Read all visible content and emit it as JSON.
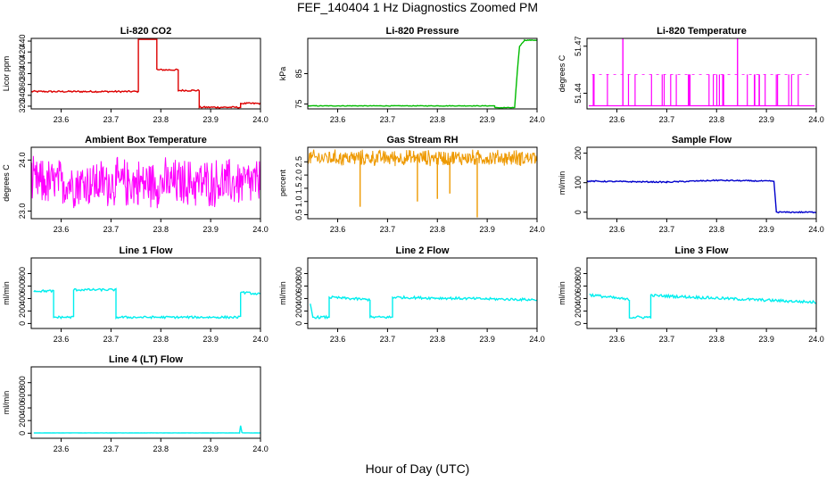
{
  "figure": {
    "title": "FEF_140404  1 Hz Diagnostics Zoomed PM",
    "xlabel": "Hour of Day (UTC)"
  },
  "chart_data": [
    {
      "type": "line",
      "title": "Li-820 CO2",
      "ylabel": "Licor ppm",
      "color": "#dd0000",
      "xlim": [
        23.54,
        24.0
      ],
      "ylim": [
        315,
        445
      ],
      "xticks": [
        23.6,
        23.7,
        23.8,
        23.9,
        24.0
      ],
      "xtick_labels": [
        "23.6",
        "23.7",
        "23.8",
        "23.9",
        "24.0"
      ],
      "yticks": [
        320,
        340,
        360,
        380,
        400,
        420,
        440
      ],
      "ytick_labels": [
        "320",
        "340",
        "360",
        "380",
        "400",
        "420",
        "440"
      ],
      "style": "step",
      "noise": 1.5,
      "x": [
        23.54,
        23.755,
        23.755,
        23.792,
        23.792,
        23.835,
        23.835,
        23.877,
        23.877,
        23.96,
        23.96,
        24.0
      ],
      "y": [
        347,
        347,
        445,
        445,
        387,
        387,
        349,
        349,
        318,
        318,
        325,
        325
      ]
    },
    {
      "type": "line",
      "title": "Li-820 Pressure",
      "ylabel": "kPa",
      "color": "#00bb00",
      "xlim": [
        23.54,
        24.0
      ],
      "ylim": [
        73.4,
        96.6
      ],
      "xticks": [
        23.6,
        23.7,
        23.8,
        23.9,
        24.0
      ],
      "xtick_labels": [
        "23.6",
        "23.7",
        "23.8",
        "23.9",
        "24.0"
      ],
      "yticks": [
        75,
        85
      ],
      "ytick_labels": [
        "75",
        "85"
      ],
      "style": "step",
      "noise": 0.1,
      "x": [
        23.54,
        23.915,
        23.915,
        23.955,
        23.96,
        23.965,
        23.975,
        24.0
      ],
      "y": [
        74.4,
        74.4,
        73.8,
        73.8,
        85,
        94,
        96,
        96
      ]
    },
    {
      "type": "spikes",
      "title": "Li-820 Temperature",
      "ylabel": "degrees C",
      "color": "#ff00ff",
      "xlim": [
        23.54,
        24.0
      ],
      "ylim": [
        51.43,
        51.475
      ],
      "xticks": [
        23.6,
        23.7,
        23.8,
        23.9,
        24.0
      ],
      "xtick_labels": [
        "23.6",
        "23.7",
        "23.8",
        "23.9",
        "24.0"
      ],
      "yticks": [
        51.44,
        51.47
      ],
      "ytick_labels": [
        "51.44",
        "51.47"
      ],
      "baseline": 51.432,
      "level": 51.452,
      "peak": 51.475,
      "peaks_x": [
        23.612,
        23.842
      ],
      "density": 0.45
    },
    {
      "type": "noise",
      "title": "Ambient Box Temperature",
      "ylabel": "degrees C",
      "color": "#ff00ff",
      "xlim": [
        23.54,
        24.0
      ],
      "ylim": [
        22.85,
        24.25
      ],
      "xticks": [
        23.6,
        23.7,
        23.8,
        23.9,
        24.0
      ],
      "xtick_labels": [
        "23.6",
        "23.7",
        "23.8",
        "23.9",
        "24.0"
      ],
      "yticks": [
        23.0,
        24.0
      ],
      "ytick_labels": [
        "23.0",
        "24.0"
      ],
      "mean": 23.55,
      "spread": 0.55
    },
    {
      "type": "noise",
      "title": "Gas Stream RH",
      "ylabel": "percent",
      "color": "#ee9900",
      "xlim": [
        23.54,
        24.0
      ],
      "ylim": [
        0.35,
        3.05
      ],
      "xticks": [
        23.6,
        23.7,
        23.8,
        23.9,
        24.0
      ],
      "xtick_labels": [
        "23.6",
        "23.7",
        "23.8",
        "23.9",
        "24.0"
      ],
      "yticks": [
        0.5,
        1.0,
        1.5,
        2.0,
        2.5
      ],
      "ytick_labels": [
        "0.5",
        "1.0",
        "1.5",
        "2.0",
        "2.5"
      ],
      "mean": 2.65,
      "spread": 0.35,
      "dips_x": [
        23.645,
        23.76,
        23.8,
        23.825,
        23.88
      ],
      "dips_y": [
        0.8,
        1.0,
        1.1,
        1.3,
        0.4
      ]
    },
    {
      "type": "line",
      "title": "Sample Flow",
      "ylabel": "ml/min",
      "color": "#0000cc",
      "xlim": [
        23.54,
        24.0
      ],
      "ylim": [
        -22,
        220
      ],
      "xticks": [
        23.6,
        23.7,
        23.8,
        23.9,
        24.0
      ],
      "xtick_labels": [
        "23.6",
        "23.7",
        "23.8",
        "23.9",
        "24.0"
      ],
      "yticks": [
        0,
        100,
        200
      ],
      "ytick_labels": [
        "0",
        "100",
        "200"
      ],
      "style": "step",
      "noise": 2,
      "x": [
        23.54,
        23.7,
        23.8,
        23.915,
        23.92,
        24.0
      ],
      "y": [
        105,
        102,
        108,
        105,
        0,
        0
      ]
    },
    {
      "type": "line",
      "title": "Line 1 Flow",
      "ylabel": "ml/min",
      "color": "#00eeee",
      "xlim": [
        23.54,
        24.0
      ],
      "ylim": [
        -80,
        1050
      ],
      "xticks": [
        23.6,
        23.7,
        23.8,
        23.9,
        24.0
      ],
      "xtick_labels": [
        "23.6",
        "23.7",
        "23.8",
        "23.9",
        "24.0"
      ],
      "yticks": [
        0,
        200,
        400,
        600,
        800
      ],
      "ytick_labels": [
        "0",
        "200",
        "400",
        "600",
        "800"
      ],
      "style": "step",
      "noise": 18,
      "x": [
        23.545,
        23.585,
        23.585,
        23.625,
        23.625,
        23.71,
        23.71,
        23.96,
        23.96,
        24.0
      ],
      "y": [
        520,
        520,
        100,
        100,
        540,
        540,
        100,
        100,
        500,
        470
      ]
    },
    {
      "type": "line",
      "title": "Line 2 Flow",
      "ylabel": "ml/min",
      "color": "#00eeee",
      "xlim": [
        23.54,
        24.0
      ],
      "ylim": [
        -80,
        1050
      ],
      "xticks": [
        23.6,
        23.7,
        23.8,
        23.9,
        24.0
      ],
      "xtick_labels": [
        "23.6",
        "23.7",
        "23.8",
        "23.9",
        "24.0"
      ],
      "yticks": [
        0,
        200,
        400,
        600,
        800
      ],
      "ytick_labels": [
        "0",
        "200",
        "400",
        "600",
        "800"
      ],
      "style": "step",
      "noise": 20,
      "x": [
        23.545,
        23.55,
        23.55,
        23.583,
        23.583,
        23.665,
        23.665,
        23.71,
        23.71,
        24.0
      ],
      "y": [
        300,
        100,
        100,
        100,
        420,
        380,
        100,
        100,
        420,
        380
      ]
    },
    {
      "type": "line",
      "title": "Line 3 Flow",
      "ylabel": "ml/min",
      "color": "#00eeee",
      "xlim": [
        23.54,
        24.0
      ],
      "ylim": [
        -80,
        1050
      ],
      "xticks": [
        23.6,
        23.7,
        23.8,
        23.9,
        24.0
      ],
      "xtick_labels": [
        "23.6",
        "23.7",
        "23.8",
        "23.9",
        "24.0"
      ],
      "yticks": [
        0,
        200,
        400,
        600,
        800
      ],
      "ytick_labels": [
        "0",
        "200",
        "400",
        "600",
        "800"
      ],
      "style": "step",
      "noise": 22,
      "x": [
        23.545,
        23.625,
        23.625,
        23.668,
        23.668,
        24.0
      ],
      "y": [
        460,
        380,
        100,
        100,
        450,
        340
      ]
    },
    {
      "type": "line",
      "title": "Line 4 (LT) Flow",
      "ylabel": "ml/min",
      "color": "#00eeee",
      "xlim": [
        23.54,
        24.0
      ],
      "ylim": [
        -80,
        1050
      ],
      "xticks": [
        23.6,
        23.7,
        23.8,
        23.9,
        24.0
      ],
      "xtick_labels": [
        "23.6",
        "23.7",
        "23.8",
        "23.9",
        "24.0"
      ],
      "yticks": [
        0,
        200,
        400,
        600,
        800
      ],
      "ytick_labels": [
        "0",
        "200",
        "400",
        "600",
        "800"
      ],
      "style": "step",
      "noise": 2,
      "x": [
        23.545,
        23.958,
        23.96,
        23.963,
        24.0
      ],
      "y": [
        5,
        5,
        120,
        5,
        5
      ]
    }
  ]
}
